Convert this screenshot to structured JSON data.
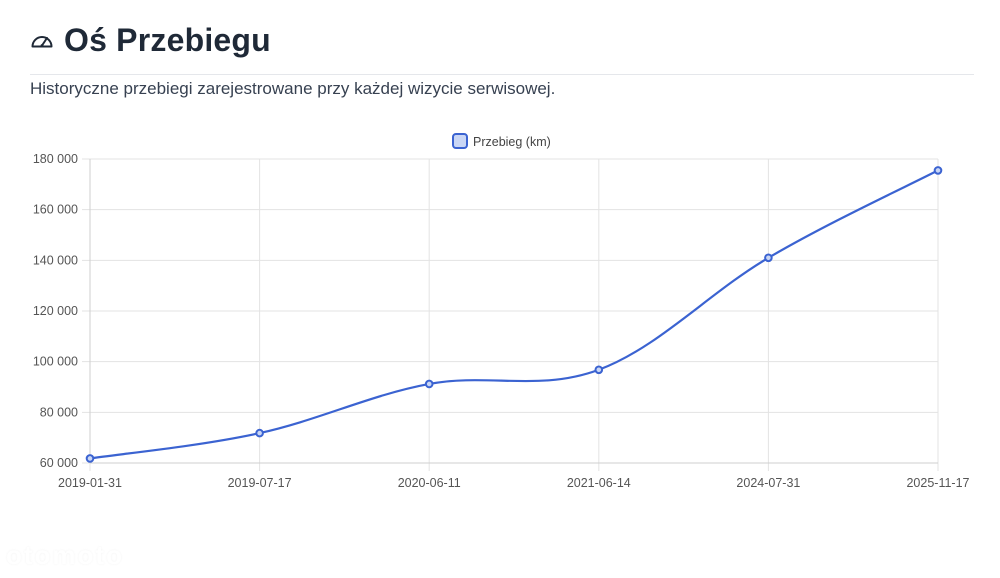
{
  "page": {
    "title": "Oś Przebiegu",
    "title_icon": "speedometer-icon",
    "subtitle": "Historyczne przebiegi zarejestrowane przy każdej wizycie serwisowej."
  },
  "chart_data": {
    "type": "line",
    "x": [
      "2019-01-31",
      "2019-07-17",
      "2020-06-11",
      "2021-06-14",
      "2024-07-31",
      "2025-11-17"
    ],
    "series": [
      {
        "name": "Przebieg (km)",
        "values": [
          61800,
          71800,
          91200,
          96800,
          141000,
          175500
        ],
        "color": "#3b63d1"
      }
    ],
    "y_ticks": [
      "60 000",
      "80 000",
      "100 000",
      "120 000",
      "140 000",
      "160 000",
      "180 000"
    ],
    "ylim": [
      60000,
      180000
    ],
    "xlabel": "",
    "ylabel": "",
    "grid": true,
    "legend_position": "top-center",
    "curve": "smooth"
  },
  "watermark": "otomoto"
}
